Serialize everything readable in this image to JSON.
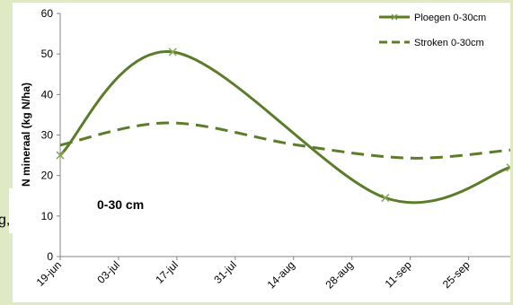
{
  "edge_fragment": "g,",
  "chart_data": {
    "type": "line",
    "title": "",
    "ylabel": "N mineraal (kg N/ha)",
    "xlabel": "",
    "ylim": [
      0,
      60
    ],
    "yticks": [
      0,
      10,
      20,
      30,
      40,
      50,
      60
    ],
    "xlim": [
      "2011-06-19",
      "2011-10-05"
    ],
    "xticks": [
      "19-jun",
      "03-jul",
      "17-jul",
      "31-jul",
      "14-aug",
      "28-aug",
      "11-sep",
      "25-sep"
    ],
    "xtick_dates": [
      "2011-06-19",
      "2011-07-03",
      "2011-07-17",
      "2011-07-31",
      "2011-08-14",
      "2011-08-28",
      "2011-09-11",
      "2011-09-25"
    ],
    "annotation": "0-30 cm",
    "legend_position": "top-right",
    "grid": false,
    "series": [
      {
        "name": "Ploegen 0-30cm",
        "color": "#5b7d2a",
        "style": "solid-with-x-markers",
        "points": [
          {
            "x": "2011-06-19",
            "y": 25
          },
          {
            "x": "2011-07-16",
            "y": 50.5
          },
          {
            "x": "2011-09-05",
            "y": 14.5
          },
          {
            "x": "2011-10-05",
            "y": 22
          }
        ]
      },
      {
        "name": "Stroken 0-30cm",
        "color": "#5b7d2a",
        "style": "dashed",
        "points": [
          {
            "x": "2011-06-19",
            "y": 27.5
          },
          {
            "x": "2011-07-15",
            "y": 33
          },
          {
            "x": "2011-08-15",
            "y": 27.5
          },
          {
            "x": "2011-09-11",
            "y": 24.3
          },
          {
            "x": "2011-10-05",
            "y": 26.3
          }
        ]
      }
    ]
  }
}
